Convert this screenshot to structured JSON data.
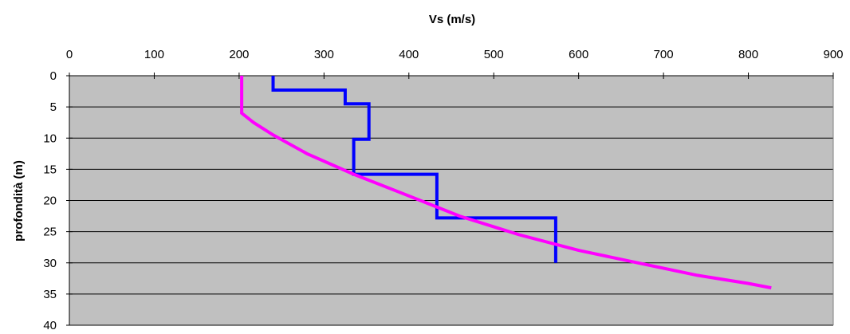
{
  "chart_data": {
    "type": "line",
    "title": "",
    "xlabel": "Vs (m/s)",
    "ylabel": "profondità (m)",
    "xlim": [
      0,
      900
    ],
    "ylim": [
      0,
      40
    ],
    "y_inverted": true,
    "x_axis_position": "top",
    "x_ticks": [
      0,
      100,
      200,
      300,
      400,
      500,
      600,
      700,
      800,
      900
    ],
    "y_ticks": [
      0,
      5,
      10,
      15,
      20,
      25,
      30,
      35,
      40
    ],
    "x_tick_labels": [
      "0",
      "100",
      "200",
      "300",
      "400",
      "500",
      "600",
      "700",
      "800",
      "900"
    ],
    "y_tick_labels": [
      "0",
      "5",
      "10",
      "15",
      "20",
      "25",
      "30",
      "35",
      "40"
    ],
    "grid": "horizontal",
    "plot_background": "#c0c0c0",
    "series": [
      {
        "color": "#0000ff",
        "points": [
          [
            240,
            0
          ],
          [
            240,
            2.3
          ],
          [
            325,
            2.3
          ],
          [
            325,
            4.5
          ],
          [
            353,
            4.5
          ],
          [
            353,
            10.2
          ],
          [
            335,
            10.2
          ],
          [
            335,
            15.8
          ],
          [
            433,
            15.8
          ],
          [
            433,
            22.8
          ],
          [
            573,
            22.8
          ],
          [
            573,
            30
          ]
        ]
      },
      {
        "color": "#ff00ff",
        "points": [
          [
            203,
            0
          ],
          [
            203,
            6
          ],
          [
            217,
            7.5
          ],
          [
            240,
            9.5
          ],
          [
            280,
            12.5
          ],
          [
            335,
            15.8
          ],
          [
            395,
            19
          ],
          [
            460,
            22.5
          ],
          [
            530,
            25.5
          ],
          [
            600,
            28
          ],
          [
            670,
            30
          ],
          [
            740,
            32
          ],
          [
            800,
            33.3
          ],
          [
            827,
            34
          ]
        ]
      }
    ]
  }
}
